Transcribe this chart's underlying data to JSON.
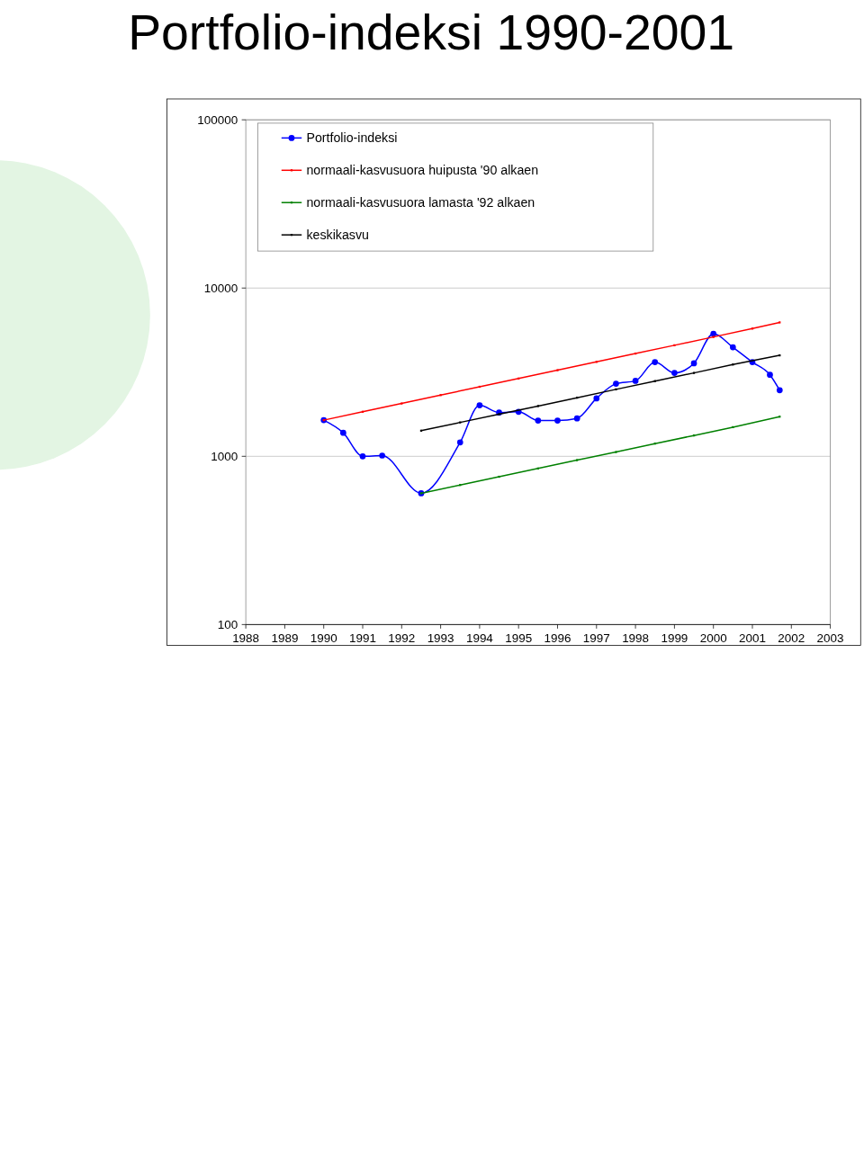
{
  "chart_data": {
    "type": "line",
    "title": "Portfolio-indeksi 1990-2001",
    "log": "y",
    "grid": "y",
    "legend": "top left",
    "xlim": [
      1988,
      2003
    ],
    "xticks": [
      1988,
      1989,
      1990,
      1991,
      1992,
      1993,
      1994,
      1995,
      1996,
      1997,
      1998,
      1999,
      2000,
      2001,
      2002,
      2003
    ],
    "ylim": [
      100,
      100000
    ],
    "yticks": [
      100,
      1000,
      10000,
      100000
    ],
    "series": [
      {
        "name": "Portfolio-indeksi",
        "color": "#0000ff",
        "marker": "circle",
        "x": [
          1990,
          1990.5,
          1991,
          1991.5,
          1992.5,
          1993.5,
          1994,
          1994.5,
          1995,
          1995.5,
          1996,
          1996.5,
          1997,
          1997.5,
          1998,
          1998.5,
          1999,
          1999.5,
          2000,
          2000.5,
          2001,
          2001.45,
          2001.7
        ],
        "values": [
          1640,
          1380,
          1000,
          1010,
          603,
          1210,
          2010,
          1820,
          1840,
          1630,
          1630,
          1680,
          2210,
          2700,
          2810,
          3630,
          3130,
          3570,
          5350,
          4450,
          3630,
          3050,
          2470
        ]
      },
      {
        "name": "normaali-kasvusuora huipusta '90 alkaen",
        "color": "#ff0000",
        "marker": "square",
        "x": [
          1990,
          1991,
          1992,
          1993,
          1994,
          1995,
          1996,
          1997,
          1998,
          1999,
          2000,
          2001,
          2001.7
        ],
        "values": [
          1640,
          1840,
          2060,
          2310,
          2590,
          2900,
          3250,
          3640,
          4080,
          4570,
          5120,
          5740,
          6250
        ]
      },
      {
        "name": "normaali-kasvusuora lamasta '92 alkaen",
        "color": "#008000",
        "marker": "square",
        "x": [
          1992.5,
          1993.5,
          1994.5,
          1995.5,
          1996.5,
          1997.5,
          1998.5,
          1999.5,
          2000.5,
          2001.7
        ],
        "values": [
          603,
          675,
          756,
          847,
          949,
          1060,
          1190,
          1330,
          1490,
          1720
        ]
      },
      {
        "name": "keskikasvu",
        "color": "#000000",
        "marker": "square",
        "x": [
          1992.5,
          1993.5,
          1994.5,
          1995.5,
          1996.5,
          1997.5,
          1998.5,
          1999.5,
          2000.5,
          2001.7
        ],
        "values": [
          1420,
          1590,
          1780,
          1990,
          2230,
          2500,
          2800,
          3130,
          3510,
          3980
        ]
      }
    ]
  }
}
